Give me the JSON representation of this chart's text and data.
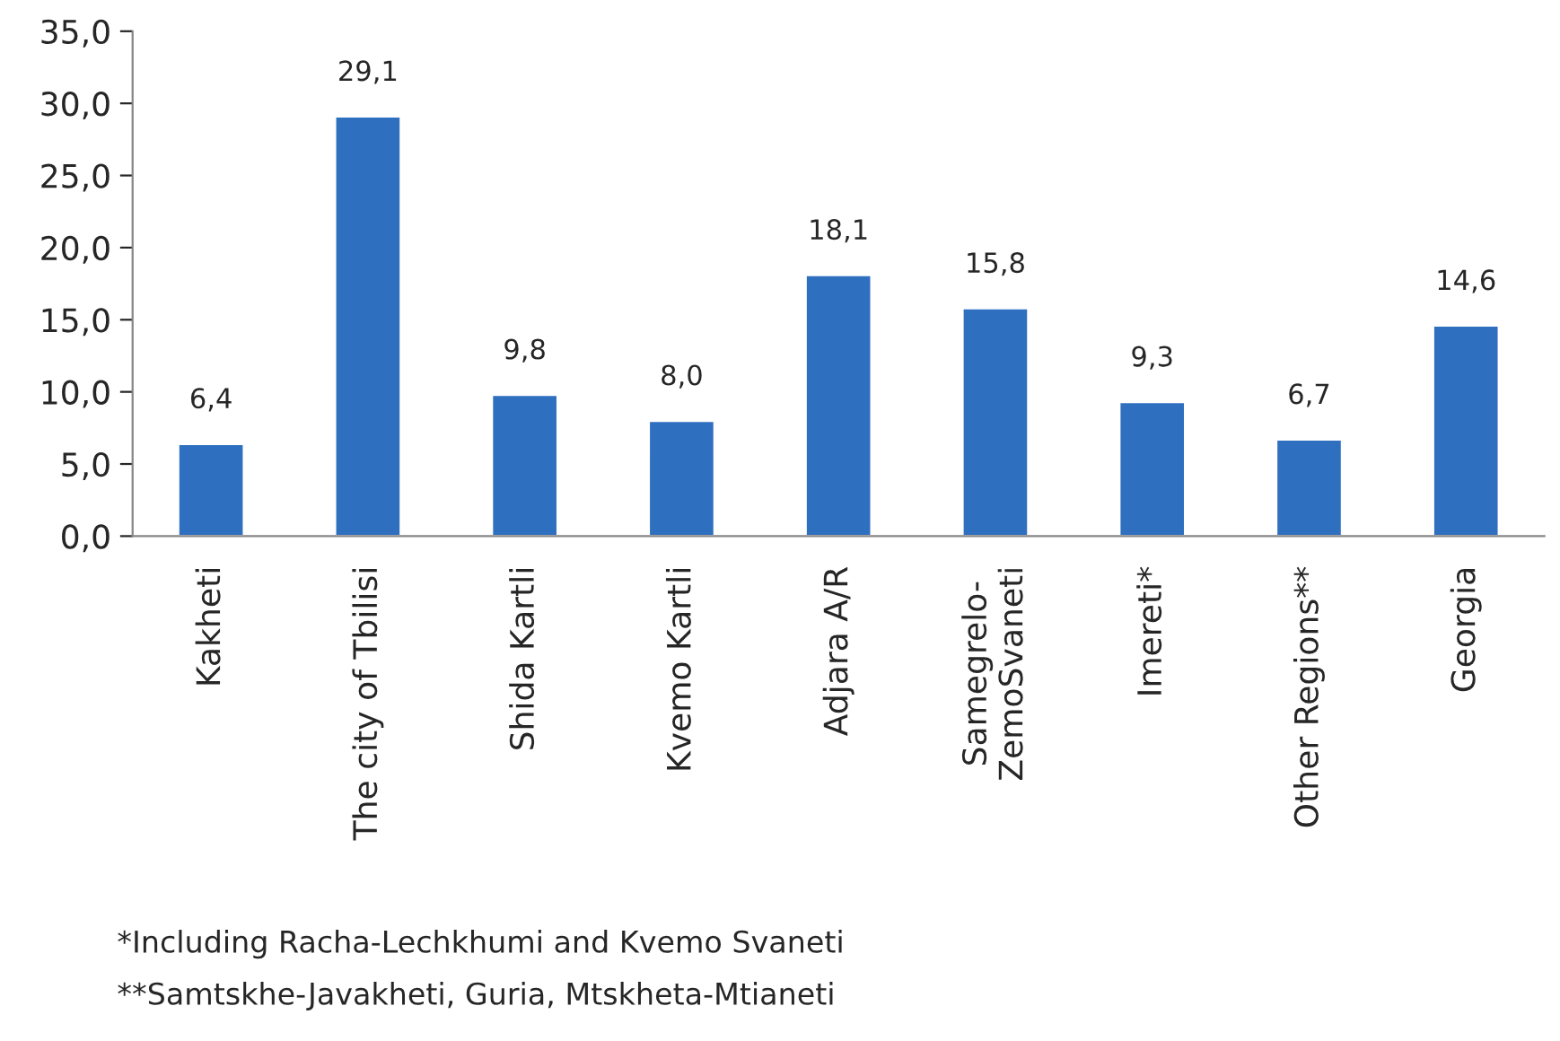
{
  "chart_data": {
    "type": "bar",
    "categories": [
      "Kakheti",
      "The city of Tbilisi",
      "Shida Kartli",
      "Kvemo Kartli",
      "Adjara A/R",
      "Samegrelo-\nZemoSvaneti",
      "Imereti*",
      "Other Regions**",
      "Georgia"
    ],
    "values": [
      6.4,
      29.1,
      9.8,
      8.0,
      18.1,
      15.8,
      9.3,
      6.7,
      14.6
    ],
    "value_labels": [
      "6,4",
      "29,1",
      "9,8",
      "8,0",
      "18,1",
      "15,8",
      "9,3",
      "6,7",
      "14,6"
    ],
    "color": "#2e6fbf",
    "ylim": [
      0,
      35
    ],
    "yticks": [
      {
        "value": 0,
        "label": "0,0"
      },
      {
        "value": 5,
        "label": "5,0"
      },
      {
        "value": 10,
        "label": "10,0"
      },
      {
        "value": 15,
        "label": "15,0"
      },
      {
        "value": 20,
        "label": "20,0"
      },
      {
        "value": 25,
        "label": "25,0"
      },
      {
        "value": 30,
        "label": "30,0"
      },
      {
        "value": 35,
        "label": "35,0"
      }
    ],
    "grid": false,
    "legend": false,
    "annotations": [
      "*Including Racha-Lechkhumi and Kvemo Svaneti",
      "**Samtskhe-Javakheti, Guria, Mtskheta-Mtianeti"
    ]
  }
}
